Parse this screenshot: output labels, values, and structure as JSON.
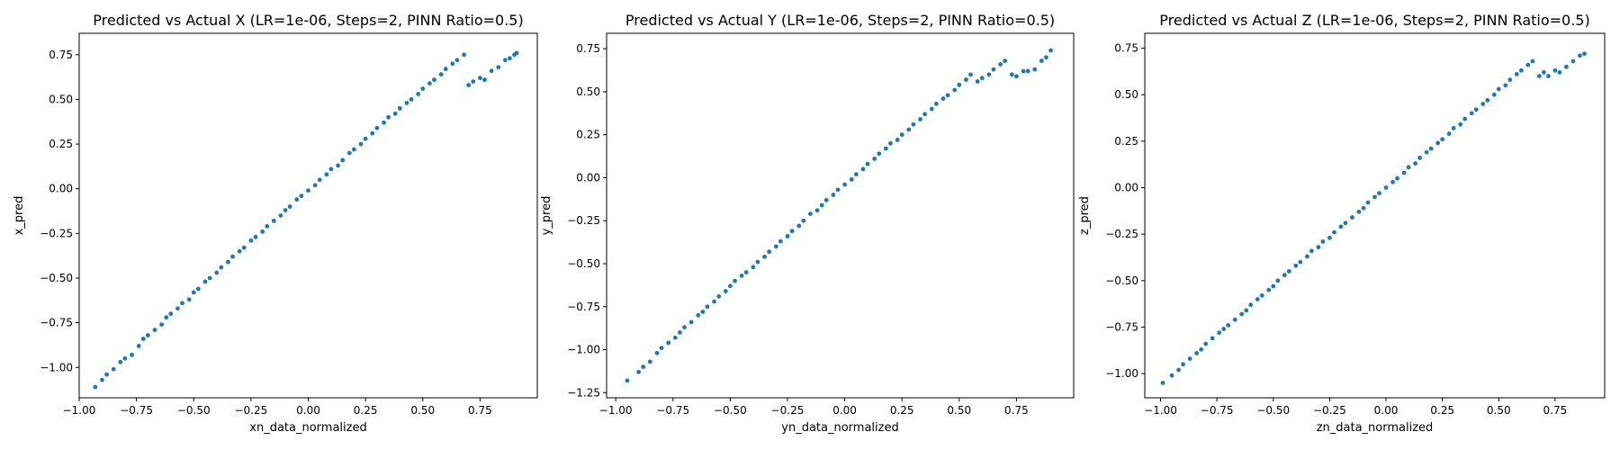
{
  "chart_data": [
    {
      "type": "scatter",
      "title": "Predicted vs Actual X (LR=1e-06, Steps=2, PINN Ratio=0.5)",
      "xlabel": "xn_data_normalized",
      "ylabel": "x_pred",
      "xlim": [
        -1.0,
        1.0
      ],
      "ylim": [
        -1.17,
        0.87
      ],
      "xticks": [
        -1.0,
        -0.75,
        -0.5,
        -0.25,
        0.0,
        0.25,
        0.5,
        0.75
      ],
      "yticks": [
        -1.0,
        -0.75,
        -0.5,
        -0.25,
        0.0,
        0.25,
        0.5,
        0.75
      ],
      "color": "#1f77b4",
      "grid": false,
      "points": [
        [
          -0.93,
          -1.11
        ],
        [
          -0.9,
          -1.07
        ],
        [
          -0.88,
          -1.04
        ],
        [
          -0.85,
          -1.01
        ],
        [
          -0.82,
          -0.97
        ],
        [
          -0.8,
          -0.95
        ],
        [
          -0.77,
          -0.93
        ],
        [
          -0.74,
          -0.88
        ],
        [
          -0.72,
          -0.84
        ],
        [
          -0.7,
          -0.82
        ],
        [
          -0.67,
          -0.79
        ],
        [
          -0.64,
          -0.76
        ],
        [
          -0.62,
          -0.72
        ],
        [
          -0.6,
          -0.7
        ],
        [
          -0.57,
          -0.67
        ],
        [
          -0.55,
          -0.64
        ],
        [
          -0.52,
          -0.62
        ],
        [
          -0.5,
          -0.58
        ],
        [
          -0.48,
          -0.56
        ],
        [
          -0.45,
          -0.52
        ],
        [
          -0.43,
          -0.5
        ],
        [
          -0.4,
          -0.47
        ],
        [
          -0.38,
          -0.44
        ],
        [
          -0.35,
          -0.41
        ],
        [
          -0.33,
          -0.38
        ],
        [
          -0.3,
          -0.35
        ],
        [
          -0.28,
          -0.33
        ],
        [
          -0.25,
          -0.29
        ],
        [
          -0.23,
          -0.27
        ],
        [
          -0.2,
          -0.24
        ],
        [
          -0.18,
          -0.21
        ],
        [
          -0.15,
          -0.18
        ],
        [
          -0.12,
          -0.15
        ],
        [
          -0.1,
          -0.12
        ],
        [
          -0.08,
          -0.1
        ],
        [
          -0.05,
          -0.06
        ],
        [
          -0.03,
          -0.04
        ],
        [
          0.0,
          -0.01
        ],
        [
          0.03,
          0.02
        ],
        [
          0.05,
          0.05
        ],
        [
          0.08,
          0.08
        ],
        [
          0.1,
          0.11
        ],
        [
          0.13,
          0.13
        ],
        [
          0.15,
          0.16
        ],
        [
          0.18,
          0.2
        ],
        [
          0.2,
          0.22
        ],
        [
          0.23,
          0.25
        ],
        [
          0.25,
          0.28
        ],
        [
          0.28,
          0.31
        ],
        [
          0.3,
          0.34
        ],
        [
          0.33,
          0.37
        ],
        [
          0.35,
          0.4
        ],
        [
          0.38,
          0.42
        ],
        [
          0.4,
          0.45
        ],
        [
          0.43,
          0.48
        ],
        [
          0.45,
          0.5
        ],
        [
          0.48,
          0.53
        ],
        [
          0.5,
          0.56
        ],
        [
          0.53,
          0.59
        ],
        [
          0.55,
          0.61
        ],
        [
          0.58,
          0.64
        ],
        [
          0.6,
          0.67
        ],
        [
          0.63,
          0.7
        ],
        [
          0.65,
          0.72
        ],
        [
          0.68,
          0.75
        ],
        [
          0.7,
          0.58
        ],
        [
          0.72,
          0.6
        ],
        [
          0.75,
          0.62
        ],
        [
          0.77,
          0.61
        ],
        [
          0.8,
          0.66
        ],
        [
          0.83,
          0.68
        ],
        [
          0.86,
          0.72
        ],
        [
          0.88,
          0.73
        ],
        [
          0.9,
          0.75
        ],
        [
          0.91,
          0.76
        ]
      ]
    },
    {
      "type": "scatter",
      "title": "Predicted vs Actual Y (LR=1e-06, Steps=2, PINN Ratio=0.5)",
      "xlabel": "yn_data_normalized",
      "ylabel": "y_pred",
      "xlim": [
        -1.04,
        1.0
      ],
      "ylim": [
        -1.28,
        0.84
      ],
      "xticks": [
        -1.0,
        -0.75,
        -0.5,
        -0.25,
        0.0,
        0.25,
        0.5,
        0.75
      ],
      "yticks": [
        -1.25,
        -1.0,
        -0.75,
        -0.5,
        -0.25,
        0.0,
        0.25,
        0.5,
        0.75
      ],
      "color": "#1f77b4",
      "grid": false,
      "points": [
        [
          -0.95,
          -1.18
        ],
        [
          -0.9,
          -1.13
        ],
        [
          -0.88,
          -1.1
        ],
        [
          -0.85,
          -1.07
        ],
        [
          -0.82,
          -1.02
        ],
        [
          -0.8,
          -0.99
        ],
        [
          -0.77,
          -0.96
        ],
        [
          -0.74,
          -0.93
        ],
        [
          -0.72,
          -0.9
        ],
        [
          -0.7,
          -0.87
        ],
        [
          -0.67,
          -0.84
        ],
        [
          -0.64,
          -0.8
        ],
        [
          -0.62,
          -0.78
        ],
        [
          -0.6,
          -0.75
        ],
        [
          -0.57,
          -0.72
        ],
        [
          -0.55,
          -0.69
        ],
        [
          -0.52,
          -0.66
        ],
        [
          -0.5,
          -0.63
        ],
        [
          -0.48,
          -0.6
        ],
        [
          -0.45,
          -0.57
        ],
        [
          -0.43,
          -0.55
        ],
        [
          -0.4,
          -0.52
        ],
        [
          -0.38,
          -0.49
        ],
        [
          -0.35,
          -0.46
        ],
        [
          -0.33,
          -0.43
        ],
        [
          -0.3,
          -0.4
        ],
        [
          -0.28,
          -0.37
        ],
        [
          -0.25,
          -0.34
        ],
        [
          -0.23,
          -0.31
        ],
        [
          -0.2,
          -0.28
        ],
        [
          -0.18,
          -0.25
        ],
        [
          -0.15,
          -0.21
        ],
        [
          -0.12,
          -0.19
        ],
        [
          -0.1,
          -0.16
        ],
        [
          -0.08,
          -0.13
        ],
        [
          -0.05,
          -0.1
        ],
        [
          -0.03,
          -0.07
        ],
        [
          0.0,
          -0.04
        ],
        [
          0.03,
          -0.01
        ],
        [
          0.05,
          0.02
        ],
        [
          0.08,
          0.05
        ],
        [
          0.1,
          0.08
        ],
        [
          0.13,
          0.11
        ],
        [
          0.15,
          0.14
        ],
        [
          0.18,
          0.17
        ],
        [
          0.2,
          0.2
        ],
        [
          0.23,
          0.22
        ],
        [
          0.25,
          0.25
        ],
        [
          0.28,
          0.28
        ],
        [
          0.3,
          0.31
        ],
        [
          0.33,
          0.34
        ],
        [
          0.35,
          0.37
        ],
        [
          0.38,
          0.4
        ],
        [
          0.4,
          0.43
        ],
        [
          0.43,
          0.46
        ],
        [
          0.45,
          0.48
        ],
        [
          0.48,
          0.51
        ],
        [
          0.5,
          0.54
        ],
        [
          0.53,
          0.57
        ],
        [
          0.55,
          0.6
        ],
        [
          0.58,
          0.56
        ],
        [
          0.6,
          0.58
        ],
        [
          0.63,
          0.6
        ],
        [
          0.65,
          0.63
        ],
        [
          0.68,
          0.66
        ],
        [
          0.7,
          0.68
        ],
        [
          0.73,
          0.6
        ],
        [
          0.75,
          0.59
        ],
        [
          0.78,
          0.62
        ],
        [
          0.8,
          0.62
        ],
        [
          0.83,
          0.63
        ],
        [
          0.86,
          0.68
        ],
        [
          0.88,
          0.7
        ],
        [
          0.9,
          0.74
        ]
      ]
    },
    {
      "type": "scatter",
      "title": "Predicted vs Actual Z (LR=1e-06, Steps=2, PINN Ratio=0.5)",
      "xlabel": "zn_data_normalized",
      "ylabel": "z_pred",
      "xlim": [
        -1.07,
        0.97
      ],
      "ylim": [
        -1.13,
        0.83
      ],
      "xticks": [
        -1.0,
        -0.75,
        -0.5,
        -0.25,
        0.0,
        0.25,
        0.5,
        0.75
      ],
      "yticks": [
        -1.0,
        -0.75,
        -0.5,
        -0.25,
        0.0,
        0.25,
        0.5,
        0.75
      ],
      "color": "#1f77b4",
      "grid": false,
      "points": [
        [
          -0.99,
          -1.05
        ],
        [
          -0.95,
          -1.01
        ],
        [
          -0.92,
          -0.98
        ],
        [
          -0.9,
          -0.95
        ],
        [
          -0.87,
          -0.92
        ],
        [
          -0.84,
          -0.89
        ],
        [
          -0.82,
          -0.87
        ],
        [
          -0.8,
          -0.84
        ],
        [
          -0.77,
          -0.81
        ],
        [
          -0.74,
          -0.78
        ],
        [
          -0.72,
          -0.76
        ],
        [
          -0.7,
          -0.74
        ],
        [
          -0.67,
          -0.71
        ],
        [
          -0.64,
          -0.68
        ],
        [
          -0.62,
          -0.66
        ],
        [
          -0.6,
          -0.63
        ],
        [
          -0.57,
          -0.6
        ],
        [
          -0.55,
          -0.58
        ],
        [
          -0.52,
          -0.55
        ],
        [
          -0.5,
          -0.53
        ],
        [
          -0.48,
          -0.5
        ],
        [
          -0.45,
          -0.47
        ],
        [
          -0.43,
          -0.45
        ],
        [
          -0.4,
          -0.42
        ],
        [
          -0.38,
          -0.4
        ],
        [
          -0.35,
          -0.37
        ],
        [
          -0.33,
          -0.34
        ],
        [
          -0.3,
          -0.32
        ],
        [
          -0.28,
          -0.29
        ],
        [
          -0.25,
          -0.27
        ],
        [
          -0.23,
          -0.24
        ],
        [
          -0.2,
          -0.21
        ],
        [
          -0.18,
          -0.19
        ],
        [
          -0.15,
          -0.16
        ],
        [
          -0.12,
          -0.13
        ],
        [
          -0.1,
          -0.11
        ],
        [
          -0.08,
          -0.08
        ],
        [
          -0.05,
          -0.05
        ],
        [
          -0.03,
          -0.03
        ],
        [
          0.0,
          0.0
        ],
        [
          0.03,
          0.03
        ],
        [
          0.05,
          0.05
        ],
        [
          0.08,
          0.08
        ],
        [
          0.1,
          0.11
        ],
        [
          0.13,
          0.13
        ],
        [
          0.15,
          0.16
        ],
        [
          0.18,
          0.19
        ],
        [
          0.2,
          0.21
        ],
        [
          0.23,
          0.24
        ],
        [
          0.25,
          0.26
        ],
        [
          0.28,
          0.29
        ],
        [
          0.3,
          0.32
        ],
        [
          0.33,
          0.34
        ],
        [
          0.35,
          0.37
        ],
        [
          0.38,
          0.4
        ],
        [
          0.4,
          0.42
        ],
        [
          0.43,
          0.45
        ],
        [
          0.45,
          0.47
        ],
        [
          0.48,
          0.5
        ],
        [
          0.5,
          0.53
        ],
        [
          0.53,
          0.55
        ],
        [
          0.55,
          0.58
        ],
        [
          0.58,
          0.61
        ],
        [
          0.6,
          0.63
        ],
        [
          0.63,
          0.66
        ],
        [
          0.65,
          0.68
        ],
        [
          0.68,
          0.6
        ],
        [
          0.7,
          0.62
        ],
        [
          0.72,
          0.6
        ],
        [
          0.75,
          0.63
        ],
        [
          0.77,
          0.62
        ],
        [
          0.8,
          0.65
        ],
        [
          0.83,
          0.68
        ],
        [
          0.86,
          0.71
        ],
        [
          0.88,
          0.72
        ]
      ]
    }
  ]
}
